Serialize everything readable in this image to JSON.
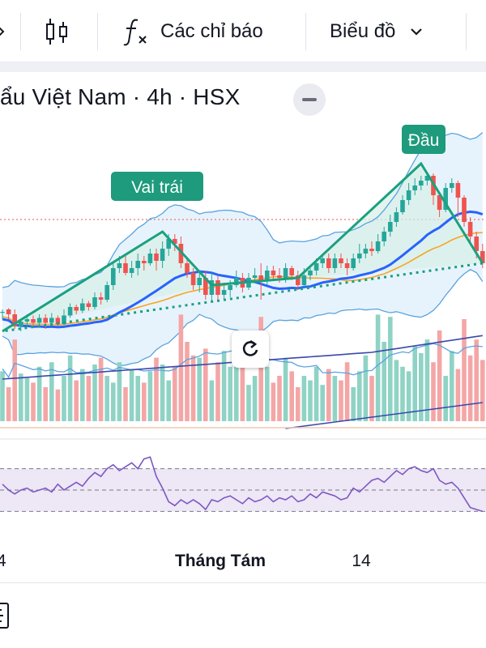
{
  "toolbar": {
    "indicators_label": "Các chỉ báo",
    "chart_type_label": "Biểu đồ",
    "icons": [
      "chevron-icon",
      "candlestick-icon",
      "fx-icon",
      "chevron-down-icon"
    ]
  },
  "chart": {
    "title": "ẩu Việt Nam · 4h · HSX",
    "annotations": {
      "left_shoulder": "Vai trái",
      "head": "Đầu"
    },
    "x_ticks": [
      "4",
      "Tháng Tám",
      "14"
    ],
    "colors": {
      "up": "#26a69a",
      "down": "#ef5350",
      "vol_up": "#8fd3c5",
      "vol_down": "#f4a6a6",
      "pattern": "#1aa17e",
      "ma_fast": "#2962ff",
      "ma_slow": "#f5a623",
      "bollinger": "#5aa3e0",
      "ma_long": "#3949ab",
      "rsi_line": "#7e57c2",
      "rsi_band": "#ede7f6",
      "label_bg": "#1e9a7c"
    },
    "price_data": {
      "type": "candlestick",
      "ohlc": [
        [
          0,
          0,
          -6,
          2
        ],
        [
          2,
          -2,
          -6,
          3
        ],
        [
          -2,
          -12,
          -14,
          2
        ],
        [
          -12,
          -8,
          -16,
          -6
        ],
        [
          -8,
          -6,
          -12,
          -2
        ],
        [
          -6,
          -9,
          -13,
          -3
        ],
        [
          -9,
          -5,
          -12,
          -2
        ],
        [
          -5,
          -9,
          -14,
          -2
        ],
        [
          -9,
          -5,
          -11,
          -1
        ],
        [
          -5,
          -10,
          -12,
          -3
        ],
        [
          -10,
          -3,
          -12,
          2
        ],
        [
          -3,
          4,
          -5,
          7
        ],
        [
          4,
          1,
          -2,
          6
        ],
        [
          1,
          7,
          -1,
          11
        ],
        [
          7,
          4,
          1,
          9
        ],
        [
          4,
          12,
          2,
          16
        ],
        [
          12,
          10,
          6,
          16
        ],
        [
          10,
          22,
          8,
          25
        ],
        [
          22,
          36,
          18,
          40
        ],
        [
          36,
          40,
          32,
          46
        ],
        [
          40,
          32,
          30,
          48
        ],
        [
          32,
          36,
          28,
          42
        ],
        [
          36,
          42,
          30,
          48
        ],
        [
          42,
          40,
          34,
          46
        ],
        [
          40,
          48,
          38,
          52
        ],
        [
          48,
          42,
          34,
          52
        ],
        [
          42,
          52,
          36,
          58
        ],
        [
          52,
          60,
          46,
          64
        ],
        [
          60,
          56,
          50,
          64
        ],
        [
          56,
          40,
          36,
          62
        ],
        [
          40,
          32,
          28,
          44
        ],
        [
          32,
          22,
          18,
          36
        ],
        [
          22,
          28,
          16,
          32
        ],
        [
          28,
          14,
          10,
          34
        ],
        [
          14,
          26,
          8,
          32
        ],
        [
          26,
          14,
          8,
          30
        ],
        [
          14,
          18,
          10,
          24
        ],
        [
          18,
          22,
          12,
          26
        ],
        [
          22,
          28,
          20,
          34
        ],
        [
          28,
          20,
          16,
          32
        ],
        [
          20,
          28,
          18,
          32
        ],
        [
          28,
          30,
          24,
          36
        ],
        [
          30,
          26,
          10,
          40
        ],
        [
          26,
          34,
          22,
          38
        ],
        [
          34,
          30,
          26,
          38
        ],
        [
          30,
          28,
          24,
          36
        ],
        [
          28,
          36,
          24,
          40
        ],
        [
          36,
          30,
          26,
          38
        ],
        [
          30,
          22,
          18,
          34
        ],
        [
          22,
          30,
          20,
          36
        ],
        [
          30,
          34,
          26,
          36
        ],
        [
          34,
          40,
          30,
          44
        ],
        [
          40,
          44,
          36,
          46
        ],
        [
          44,
          36,
          32,
          48
        ],
        [
          36,
          44,
          32,
          48
        ],
        [
          44,
          40,
          36,
          48
        ],
        [
          40,
          36,
          30,
          44
        ],
        [
          36,
          44,
          34,
          48
        ],
        [
          44,
          48,
          40,
          56
        ],
        [
          48,
          52,
          44,
          56
        ],
        [
          52,
          50,
          46,
          58
        ],
        [
          50,
          58,
          48,
          64
        ],
        [
          58,
          66,
          54,
          70
        ],
        [
          66,
          74,
          62,
          80
        ],
        [
          74,
          82,
          70,
          86
        ],
        [
          82,
          92,
          80,
          96
        ],
        [
          92,
          100,
          88,
          106
        ],
        [
          100,
          104,
          96,
          110
        ],
        [
          104,
          108,
          100,
          112
        ],
        [
          108,
          112,
          104,
          114
        ],
        [
          112,
          96,
          88,
          114
        ],
        [
          96,
          84,
          78,
          98
        ],
        [
          84,
          102,
          82,
          106
        ],
        [
          102,
          106,
          98,
          110
        ],
        [
          106,
          94,
          78,
          108
        ],
        [
          94,
          74,
          70,
          96
        ],
        [
          74,
          62,
          56,
          78
        ],
        [
          62,
          50,
          44,
          66
        ],
        [
          50,
          40,
          36,
          56
        ]
      ]
    },
    "volume_data": {
      "type": "bar",
      "values": [
        44,
        30,
        72,
        42,
        38,
        34,
        48,
        30,
        52,
        28,
        40,
        58,
        36,
        46,
        40,
        50,
        56,
        40,
        34,
        52,
        30,
        46,
        40,
        34,
        44,
        56,
        50,
        36,
        48,
        94,
        70,
        58,
        56,
        64,
        36,
        52,
        62,
        48,
        58,
        50,
        32,
        40,
        92,
        48,
        34,
        40,
        56,
        44,
        30,
        40,
        36,
        48,
        32,
        46,
        40,
        36,
        52,
        30,
        44,
        58,
        40,
        94,
        70,
        92,
        54,
        48,
        44,
        66,
        60,
        72,
        52,
        80,
        40,
        62,
        46,
        90,
        58,
        72,
        54
      ],
      "ylim": [
        0,
        100
      ]
    },
    "rsi_data": {
      "type": "line",
      "values": [
        56,
        50,
        46,
        50,
        52,
        48,
        50,
        52,
        48,
        56,
        50,
        54,
        58,
        54,
        62,
        68,
        64,
        72,
        76,
        70,
        74,
        78,
        72,
        82,
        84,
        64,
        52,
        38,
        34,
        40,
        36,
        40,
        36,
        30,
        40,
        38,
        42,
        44,
        40,
        36,
        42,
        38,
        40,
        44,
        38,
        42,
        40,
        44,
        38,
        40,
        46,
        42,
        48,
        46,
        44,
        40,
        42,
        52,
        48,
        54,
        60,
        62,
        58,
        64,
        70,
        66,
        72,
        74,
        70,
        68,
        72,
        60,
        56,
        58,
        52,
        42,
        32,
        30,
        28
      ],
      "ylim": [
        0,
        100
      ]
    }
  }
}
